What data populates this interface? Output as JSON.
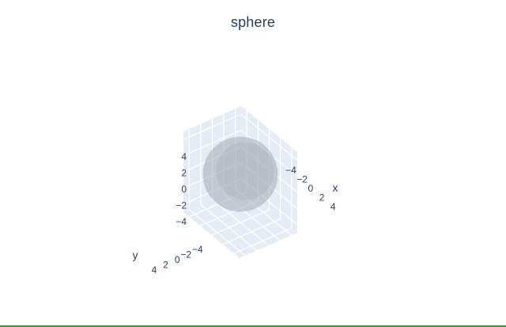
{
  "chart_data": {
    "type": "surface",
    "title": "sphere",
    "surface": {
      "shape": "sphere",
      "center": [
        0,
        0,
        0
      ],
      "radius": 3,
      "color": "#a0a4ad",
      "opacity": 0.5
    },
    "axes": {
      "x": {
        "label": "x",
        "range": [
          -5,
          5
        ],
        "ticks": [
          -4,
          -2,
          0,
          2,
          4
        ],
        "tick_labels": [
          "−4",
          "−2",
          "0",
          "2",
          "4"
        ]
      },
      "y": {
        "label": "y",
        "range": [
          -5,
          5
        ],
        "ticks": [
          -4,
          -2,
          0,
          2,
          4
        ],
        "tick_labels": [
          "−4",
          "−2",
          "0",
          "2",
          "4"
        ]
      },
      "z": {
        "label": "",
        "range": [
          -5,
          5
        ],
        "ticks": [
          -4,
          -2,
          0,
          2,
          4
        ],
        "tick_labels": [
          "−4",
          "−2",
          "0",
          "2",
          "4"
        ]
      }
    },
    "grid": true,
    "legend": false
  },
  "colors": {
    "background": "#ffffff",
    "plot_pane": "#e5ecf6",
    "grid": "#ffffff",
    "text": "#2a3f5f",
    "bottom_border": "#2e9e2e"
  }
}
